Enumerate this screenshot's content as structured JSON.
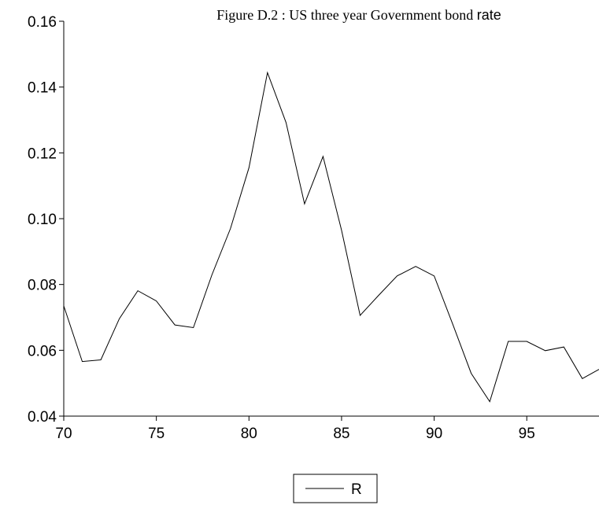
{
  "chart_data": {
    "type": "line",
    "title_main": "Figure D.2 : US three year Government bond",
    "title_tail": "rate",
    "xlabel": "",
    "ylabel": "",
    "xlim": [
      70,
      98.9
    ],
    "ylim": [
      0.04,
      0.16
    ],
    "x_ticks": [
      70,
      75,
      80,
      85,
      90,
      95
    ],
    "x_tick_labels": [
      "70",
      "75",
      "80",
      "85",
      "90",
      "95"
    ],
    "y_ticks": [
      0.04,
      0.06,
      0.08,
      0.1,
      0.12,
      0.14,
      0.16
    ],
    "y_tick_labels": [
      "0.04",
      "0.06",
      "0.08",
      "0.10",
      "0.12",
      "0.14",
      "0.16"
    ],
    "grid": false,
    "legend_position": "bottom-center",
    "series": [
      {
        "name": "R",
        "color": "#000000",
        "x": [
          70,
          71,
          72,
          73,
          74,
          75,
          76,
          77,
          78,
          79,
          80,
          81,
          82,
          83,
          84,
          85,
          86,
          87,
          88,
          89,
          90,
          91,
          92,
          93,
          94,
          95,
          96,
          97,
          98,
          98.9
        ],
        "values": [
          0.0735,
          0.0566,
          0.0571,
          0.0696,
          0.0781,
          0.075,
          0.0677,
          0.0669,
          0.0829,
          0.097,
          0.1155,
          0.1444,
          0.1292,
          0.1045,
          0.1189,
          0.0965,
          0.0706,
          0.0767,
          0.0826,
          0.0855,
          0.0826,
          0.068,
          0.053,
          0.0444,
          0.0627,
          0.0627,
          0.0599,
          0.061,
          0.0514,
          0.0542
        ]
      }
    ]
  }
}
